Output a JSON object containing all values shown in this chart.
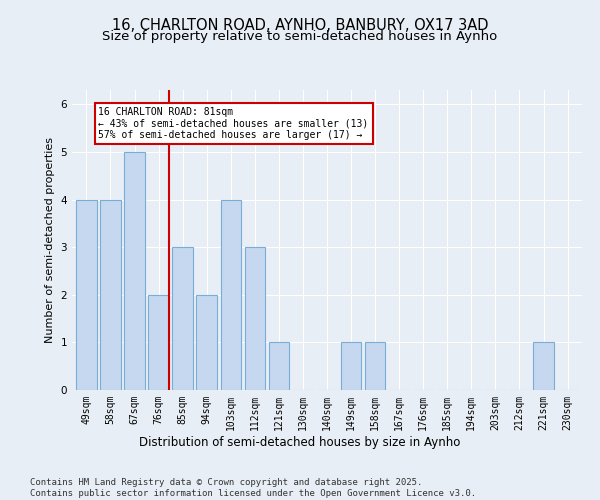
{
  "title_line1": "16, CHARLTON ROAD, AYNHO, BANBURY, OX17 3AD",
  "title_line2": "Size of property relative to semi-detached houses in Aynho",
  "xlabel": "Distribution of semi-detached houses by size in Aynho",
  "ylabel": "Number of semi-detached properties",
  "bins": [
    "49sqm",
    "58sqm",
    "67sqm",
    "76sqm",
    "85sqm",
    "94sqm",
    "103sqm",
    "112sqm",
    "121sqm",
    "130sqm",
    "140sqm",
    "149sqm",
    "158sqm",
    "167sqm",
    "176sqm",
    "185sqm",
    "194sqm",
    "203sqm",
    "212sqm",
    "221sqm",
    "230sqm"
  ],
  "values": [
    4,
    4,
    5,
    2,
    3,
    2,
    4,
    3,
    1,
    0,
    0,
    1,
    1,
    0,
    0,
    0,
    0,
    0,
    0,
    1,
    0
  ],
  "bar_color": "#c5d8f0",
  "bar_edge_color": "#7aadd4",
  "property_bin_index": 3,
  "vline_color": "#cc0000",
  "annotation_text": "16 CHARLTON ROAD: 81sqm\n← 43% of semi-detached houses are smaller (13)\n57% of semi-detached houses are larger (17) →",
  "annotation_box_color": "#ffffff",
  "annotation_box_edge_color": "#cc0000",
  "footer_text": "Contains HM Land Registry data © Crown copyright and database right 2025.\nContains public sector information licensed under the Open Government Licence v3.0.",
  "ylim": [
    0,
    6.3
  ],
  "background_color": "#e8eef5",
  "plot_background_color": "#e8eef5",
  "title_fontsize": 10.5,
  "subtitle_fontsize": 9.5,
  "tick_fontsize": 7,
  "ylabel_fontsize": 8,
  "xlabel_fontsize": 8.5,
  "footer_fontsize": 6.5
}
